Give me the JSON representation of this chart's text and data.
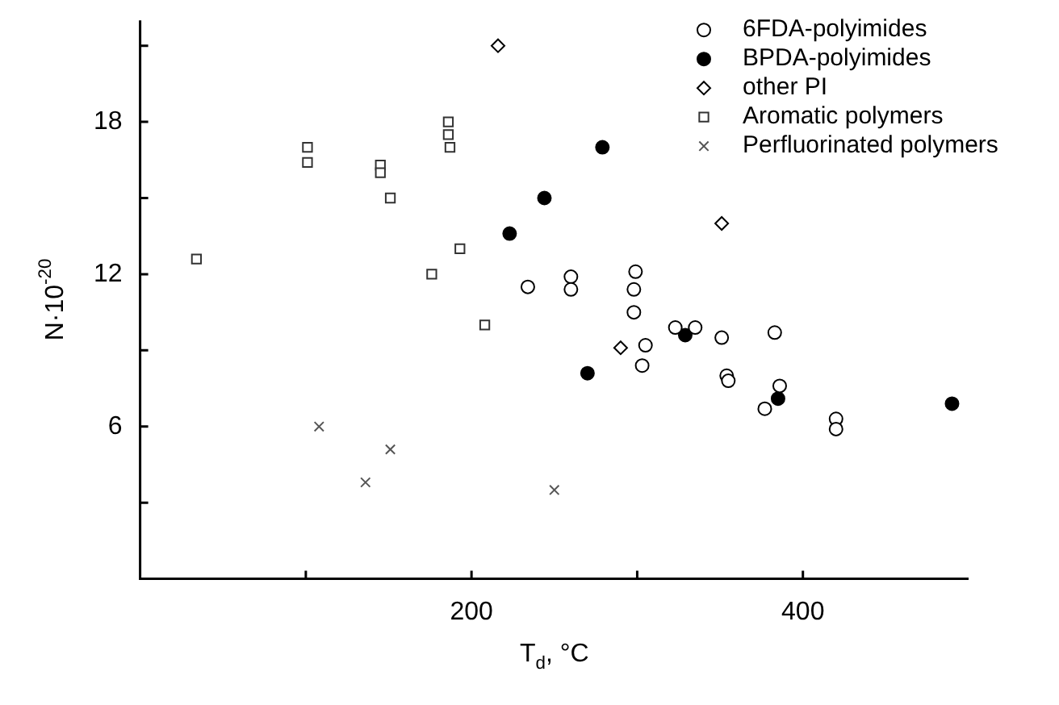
{
  "chart_data": {
    "type": "scatter",
    "xlabel": "T$_{d}$, °C",
    "ylabel": "N·10$^{-20}$",
    "xlim": [
      0,
      500
    ],
    "xticks": [
      {
        "value": 100,
        "label": null
      },
      200,
      {
        "value": 300,
        "label": null
      },
      400
    ],
    "ylim": [
      0,
      22
    ],
    "yticks": [
      {
        "value": 3,
        "label": null
      },
      6,
      {
        "value": 9,
        "label": null
      },
      12,
      {
        "value": 15,
        "label": null
      },
      18,
      {
        "value": 21,
        "label": null
      }
    ],
    "legend": "top right",
    "grid": false,
    "series": [
      {
        "name": "6FDA-polyimides",
        "color": "#000000",
        "marker": "circle",
        "x": [
          234,
          260,
          260,
          299,
          298,
          298,
          305,
          303,
          323,
          335,
          351,
          383,
          354,
          355,
          386,
          377,
          420,
          420
        ],
        "values": [
          11.5,
          11.9,
          11.4,
          12.1,
          11.4,
          10.5,
          9.2,
          8.4,
          9.9,
          9.9,
          9.5,
          9.7,
          8.0,
          7.8,
          7.6,
          6.7,
          6.3,
          5.9
        ]
      },
      {
        "name": "BPDA-polyimides",
        "color": "#000000",
        "marker": "circle",
        "x": [
          223,
          244,
          279,
          270,
          329,
          385,
          490
        ],
        "values": [
          13.6,
          15.0,
          17.0,
          8.1,
          9.6,
          7.1,
          6.9
        ]
      },
      {
        "name": "other PI",
        "color": "#000000",
        "marker": "diamond",
        "x": [
          216,
          351,
          290
        ],
        "values": [
          21.0,
          14.0,
          9.1
        ]
      },
      {
        "name": "Aromatic polymers",
        "color": "#333333",
        "marker": "square",
        "x": [
          34,
          101,
          101,
          145,
          145,
          151,
          186,
          186,
          187,
          193,
          176,
          208
        ],
        "values": [
          12.6,
          17.0,
          16.4,
          16.3,
          16.0,
          15.0,
          18.0,
          17.5,
          17.0,
          13.0,
          12.0,
          10.0
        ]
      },
      {
        "name": "Perfluorinated polymers",
        "color": "#555555",
        "marker": "cross",
        "x": [
          108,
          151,
          136,
          250
        ],
        "values": [
          6.0,
          5.1,
          3.8,
          3.5
        ]
      }
    ]
  }
}
